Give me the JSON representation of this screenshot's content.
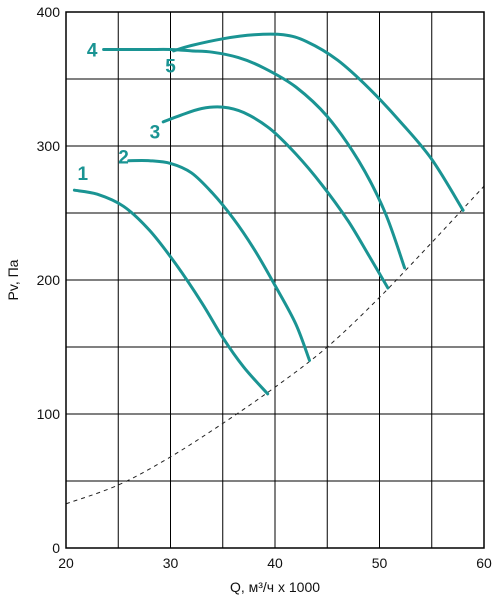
{
  "chart_data": {
    "type": "line",
    "title": "",
    "xlabel": "Q, м³/ч х 1000",
    "ylabel": "Pv, Па",
    "xlim": [
      20,
      60
    ],
    "ylim": [
      0,
      400
    ],
    "x_ticks": [
      20,
      30,
      40,
      50,
      60
    ],
    "y_ticks": [
      0,
      100,
      200,
      300,
      400
    ],
    "x_gridlines": [
      25,
      30,
      35,
      40,
      45,
      50,
      55
    ],
    "y_gridlines": [
      50,
      100,
      150,
      200,
      250,
      300,
      350
    ],
    "emphasized_gridline_x": 40,
    "grid": true,
    "series": [
      {
        "label": "1",
        "color": "#1a9493",
        "points": [
          [
            20.8,
            267
          ],
          [
            23,
            264
          ],
          [
            25.5,
            255
          ],
          [
            28,
            237
          ],
          [
            30.5,
            212
          ],
          [
            33,
            183
          ],
          [
            35,
            157
          ],
          [
            37,
            135
          ],
          [
            39.3,
            115
          ]
        ],
        "label_at": [
          21.1,
          280
        ]
      },
      {
        "label": "2",
        "color": "#1a9493",
        "points": [
          [
            26,
            289
          ],
          [
            28,
            289
          ],
          [
            30,
            287
          ],
          [
            32,
            280
          ],
          [
            34,
            265
          ],
          [
            36,
            246
          ],
          [
            38,
            223
          ],
          [
            40,
            196
          ],
          [
            42,
            167
          ],
          [
            43.3,
            140
          ]
        ],
        "label_at": [
          25,
          292
        ]
      },
      {
        "label": "3",
        "color": "#1a9493",
        "points": [
          [
            29.3,
            318
          ],
          [
            31,
            323
          ],
          [
            33,
            328
          ],
          [
            35,
            329
          ],
          [
            37,
            325
          ],
          [
            39.5,
            313
          ],
          [
            42,
            294
          ],
          [
            44.5,
            271
          ],
          [
            47,
            244
          ],
          [
            49,
            218
          ],
          [
            50.8,
            194
          ]
        ],
        "label_at": [
          28,
          311
        ]
      },
      {
        "label": "4",
        "color": "#1a9493",
        "points": [
          [
            23.6,
            372
          ],
          [
            26,
            372
          ],
          [
            28,
            372
          ],
          [
            30,
            372
          ],
          [
            32,
            371
          ],
          [
            34,
            370
          ],
          [
            36.5,
            366
          ],
          [
            39,
            358
          ],
          [
            42,
            344
          ],
          [
            45,
            322
          ],
          [
            48,
            289
          ],
          [
            50.5,
            251
          ],
          [
            52.4,
            209
          ]
        ],
        "label_at": [
          22,
          372
        ]
      },
      {
        "label": "5",
        "color": "#1a9493",
        "points": [
          [
            30.3,
            371
          ],
          [
            32,
            375
          ],
          [
            35,
            380
          ],
          [
            38,
            383
          ],
          [
            40.8,
            383
          ],
          [
            43,
            378
          ],
          [
            46,
            364
          ],
          [
            49,
            343
          ],
          [
            52,
            318
          ],
          [
            55,
            290
          ],
          [
            58,
            252
          ]
        ],
        "label_at": [
          29.5,
          360
        ]
      }
    ],
    "limit_curve": {
      "style": "dashed",
      "points": [
        [
          20,
          33
        ],
        [
          25,
          47
        ],
        [
          30,
          68
        ],
        [
          35,
          93
        ],
        [
          40,
          120
        ],
        [
          45,
          150
        ],
        [
          50,
          187
        ],
        [
          55,
          228
        ],
        [
          60,
          270
        ]
      ]
    }
  }
}
